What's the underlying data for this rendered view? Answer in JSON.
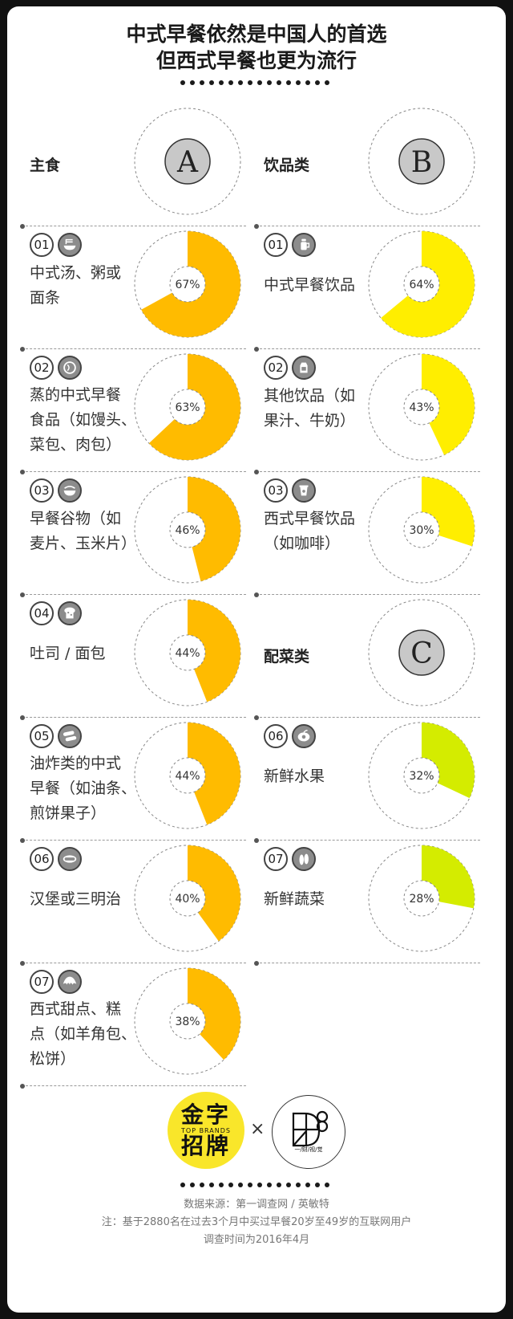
{
  "title": {
    "line1": "中式早餐依然是中国人的首选",
    "line2": "但西式早餐也更为流行"
  },
  "categories": [
    {
      "letter": "A",
      "name": "主食"
    },
    {
      "letter": "B",
      "name": "饮品类"
    },
    {
      "letter": "C",
      "name": "配菜类"
    }
  ],
  "colors": {
    "staple": "#ffbb00",
    "drink": "#ffee00",
    "side": "#d4ec00",
    "ring_bg": "#ffffff",
    "badge_bg": "#c8c8c8"
  },
  "chart_data": {
    "type": "donut",
    "unit": "%",
    "groups": [
      {
        "category": "主食",
        "items": [
          {
            "num": "01",
            "label": "中式汤、粥或面条",
            "value": 67,
            "icon": "noodle-bowl-icon"
          },
          {
            "num": "02",
            "label": "蒸的中式早餐食品（如馒头、菜包、肉包）",
            "value": 63,
            "icon": "steamed-bun-icon"
          },
          {
            "num": "03",
            "label": "早餐谷物（如麦片、玉米片）",
            "value": 46,
            "icon": "cereal-bowl-icon"
          },
          {
            "num": "04",
            "label": "吐司 / 面包",
            "value": 44,
            "icon": "toast-icon"
          },
          {
            "num": "05",
            "label": "油炸类的中式早餐（如油条、煎饼果子）",
            "value": 44,
            "icon": "fried-dough-icon"
          },
          {
            "num": "06",
            "label": "汉堡或三明治",
            "value": 40,
            "icon": "hotdog-icon"
          },
          {
            "num": "07",
            "label": "西式甜点、糕点（如羊角包、松饼）",
            "value": 38,
            "icon": "croissant-icon"
          }
        ]
      },
      {
        "category": "饮品类",
        "items": [
          {
            "num": "01",
            "label": "中式早餐饮品",
            "value": 64,
            "icon": "soymilk-maker-icon"
          },
          {
            "num": "02",
            "label": "其他饮品（如果汁、牛奶）",
            "value": 43,
            "icon": "milk-carton-icon"
          },
          {
            "num": "03",
            "label": "西式早餐饮品（如咖啡）",
            "value": 30,
            "icon": "coffee-cup-icon"
          }
        ]
      },
      {
        "category": "配菜类",
        "items": [
          {
            "num": "06",
            "label": "新鲜水果",
            "value": 32,
            "icon": "fruit-icon"
          },
          {
            "num": "07",
            "label": "新鲜蔬菜",
            "value": 28,
            "icon": "vegetable-icon"
          }
        ]
      }
    ]
  },
  "labels": {
    "staple": [
      [
        "中式汤、粥或",
        "面条"
      ],
      [
        "蒸的中式早餐",
        "食品（如馒头、",
        "菜包、肉包）"
      ],
      [
        "早餐谷物（如",
        "麦片、玉米片）"
      ],
      [
        "吐司 / 面包"
      ],
      [
        "油炸类的中式",
        "早餐（如油条、",
        "煎饼果子）"
      ],
      [
        "汉堡或三明治"
      ],
      [
        "西式甜点、糕",
        "点（如羊角包、",
        "松饼）"
      ]
    ],
    "drink": [
      [
        "中式早餐饮品"
      ],
      [
        "其他饮品（如",
        "果汁、牛奶）"
      ],
      [
        "西式早餐饮品",
        "（如咖啡）"
      ]
    ],
    "side": [
      [
        "新鲜水果"
      ],
      [
        "新鲜蔬菜"
      ]
    ]
  },
  "logos": {
    "left": {
      "line1": "金字",
      "line2": "招牌",
      "tag": "TOP BRANDS"
    },
    "times": "×",
    "right": {
      "tag": "一/财/视/觉"
    }
  },
  "footer": {
    "source": "数据来源：第一调查网 / 英敏特",
    "note": "注：基于2880名在过去3个月中买过早餐20岁至49岁的互联网用户",
    "period": "调查时间为2016年4月"
  }
}
